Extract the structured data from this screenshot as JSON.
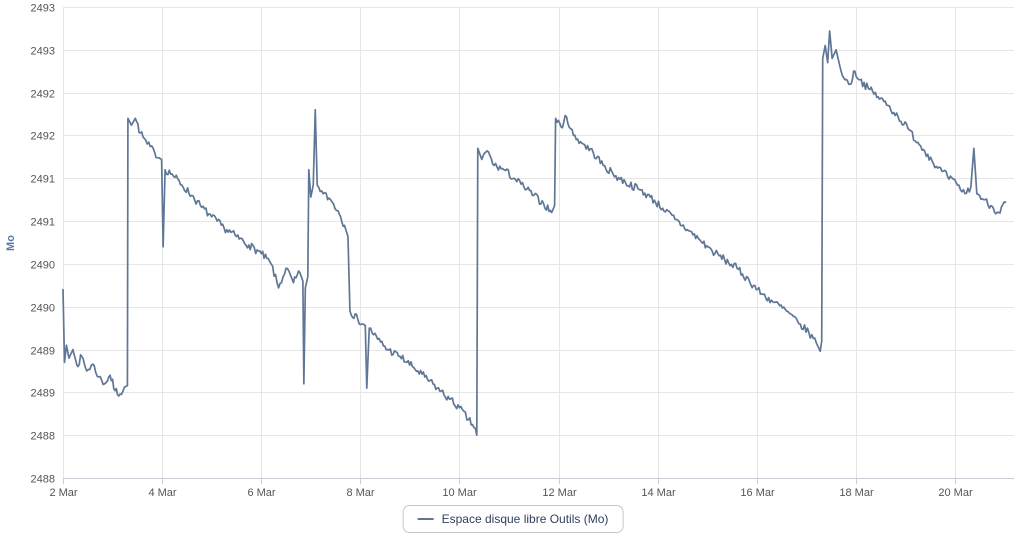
{
  "page": {
    "background": "#ffffff"
  },
  "styles": {
    "grid_color": "#e6e6e6",
    "axis_line_color": "#c9ced6",
    "tick_label_color": "#555555",
    "y_title_color": "#5878a8",
    "legend_text_color": "#2f3f5c",
    "legend_border_color": "#c9c9c9"
  },
  "legend": {
    "items": [
      {
        "label": "Espace disque libre Outils (Mo)",
        "swatch_color": "#5f7695"
      }
    ]
  },
  "chart_data": {
    "type": "line",
    "title": "",
    "xlabel": "",
    "ylabel": "Mo",
    "grid": true,
    "legend_position": "bottom-center",
    "x_range_days": [
      2,
      21.19
    ],
    "y_range": [
      2488,
      2493.5
    ],
    "x_ticks": [
      {
        "d": 2,
        "label": "2 Mar"
      },
      {
        "d": 4,
        "label": "4 Mar"
      },
      {
        "d": 6,
        "label": "6 Mar"
      },
      {
        "d": 8,
        "label": "8 Mar"
      },
      {
        "d": 10,
        "label": "10 Mar"
      },
      {
        "d": 12,
        "label": "12 Mar"
      },
      {
        "d": 14,
        "label": "14 Mar"
      },
      {
        "d": 16,
        "label": "16 Mar"
      },
      {
        "d": 18,
        "label": "18 Mar"
      },
      {
        "d": 20,
        "label": "20 Mar"
      }
    ],
    "y_ticks": [
      {
        "v": 2493.5,
        "label": "2493"
      },
      {
        "v": 2493.0,
        "label": "2493"
      },
      {
        "v": 2492.5,
        "label": "2492"
      },
      {
        "v": 2492.0,
        "label": "2492"
      },
      {
        "v": 2491.5,
        "label": "2491"
      },
      {
        "v": 2491.0,
        "label": "2491"
      },
      {
        "v": 2490.5,
        "label": "2490"
      },
      {
        "v": 2490.0,
        "label": "2490"
      },
      {
        "v": 2489.5,
        "label": "2489"
      },
      {
        "v": 2489.0,
        "label": "2489"
      },
      {
        "v": 2488.5,
        "label": "2488"
      },
      {
        "v": 2488.0,
        "label": "2488"
      }
    ],
    "noise_amplitude": 0.045,
    "noise_seed": 7,
    "sample_step_days": 0.028,
    "series": [
      {
        "name": "Espace disque libre Outils (Mo)",
        "color": "#5f7695",
        "unit": "Mo",
        "anchors": [
          [
            2.0,
            2490.2
          ],
          [
            2.03,
            2489.35
          ],
          [
            2.07,
            2489.55
          ],
          [
            2.12,
            2489.4
          ],
          [
            2.2,
            2489.5
          ],
          [
            2.28,
            2489.32
          ],
          [
            2.38,
            2489.42
          ],
          [
            2.48,
            2489.25
          ],
          [
            2.6,
            2489.33
          ],
          [
            2.72,
            2489.18
          ],
          [
            2.84,
            2489.1
          ],
          [
            2.95,
            2489.2
          ],
          [
            3.05,
            2489.02
          ],
          [
            3.15,
            2488.98
          ],
          [
            3.24,
            2489.06
          ],
          [
            3.3,
            2489.08
          ],
          [
            3.31,
            2492.2
          ],
          [
            3.38,
            2492.12
          ],
          [
            3.46,
            2492.2
          ],
          [
            3.56,
            2492.03
          ],
          [
            3.7,
            2491.9
          ],
          [
            3.85,
            2491.8
          ],
          [
            3.99,
            2491.72
          ],
          [
            4.02,
            2490.7
          ],
          [
            4.06,
            2491.6
          ],
          [
            4.2,
            2491.55
          ],
          [
            4.4,
            2491.42
          ],
          [
            4.6,
            2491.3
          ],
          [
            4.8,
            2491.16
          ],
          [
            5.0,
            2491.05
          ],
          [
            5.25,
            2490.92
          ],
          [
            5.5,
            2490.82
          ],
          [
            5.75,
            2490.72
          ],
          [
            6.0,
            2490.62
          ],
          [
            6.2,
            2490.5
          ],
          [
            6.35,
            2490.22
          ],
          [
            6.5,
            2490.45
          ],
          [
            6.65,
            2490.28
          ],
          [
            6.78,
            2490.4
          ],
          [
            6.84,
            2490.3
          ],
          [
            6.86,
            2489.1
          ],
          [
            6.89,
            2490.22
          ],
          [
            6.94,
            2490.35
          ],
          [
            6.96,
            2491.6
          ],
          [
            7.0,
            2491.28
          ],
          [
            7.05,
            2491.42
          ],
          [
            7.09,
            2492.3
          ],
          [
            7.13,
            2491.42
          ],
          [
            7.25,
            2491.32
          ],
          [
            7.4,
            2491.25
          ],
          [
            7.55,
            2491.12
          ],
          [
            7.68,
            2490.95
          ],
          [
            7.75,
            2490.82
          ],
          [
            7.79,
            2489.95
          ],
          [
            7.95,
            2489.85
          ],
          [
            8.1,
            2489.78
          ],
          [
            8.13,
            2489.05
          ],
          [
            8.18,
            2489.75
          ],
          [
            8.35,
            2489.62
          ],
          [
            8.55,
            2489.5
          ],
          [
            8.8,
            2489.42
          ],
          [
            9.05,
            2489.3
          ],
          [
            9.3,
            2489.18
          ],
          [
            9.55,
            2489.05
          ],
          [
            9.8,
            2488.92
          ],
          [
            10.0,
            2488.82
          ],
          [
            10.18,
            2488.68
          ],
          [
            10.32,
            2488.58
          ],
          [
            10.35,
            2488.5
          ],
          [
            10.37,
            2491.85
          ],
          [
            10.45,
            2491.72
          ],
          [
            10.56,
            2491.82
          ],
          [
            10.7,
            2491.65
          ],
          [
            10.9,
            2491.6
          ],
          [
            11.1,
            2491.5
          ],
          [
            11.3,
            2491.4
          ],
          [
            11.5,
            2491.3
          ],
          [
            11.7,
            2491.2
          ],
          [
            11.86,
            2491.1
          ],
          [
            11.92,
            2491.18
          ],
          [
            11.94,
            2492.2
          ],
          [
            12.05,
            2492.1
          ],
          [
            12.16,
            2492.22
          ],
          [
            12.3,
            2492.0
          ],
          [
            12.5,
            2491.9
          ],
          [
            12.7,
            2491.8
          ],
          [
            12.9,
            2491.65
          ],
          [
            13.1,
            2491.55
          ],
          [
            13.35,
            2491.45
          ],
          [
            13.6,
            2491.38
          ],
          [
            13.85,
            2491.28
          ],
          [
            14.1,
            2491.15
          ],
          [
            14.35,
            2491.02
          ],
          [
            14.6,
            2490.9
          ],
          [
            14.85,
            2490.78
          ],
          [
            15.1,
            2490.65
          ],
          [
            15.35,
            2490.55
          ],
          [
            15.6,
            2490.45
          ],
          [
            15.85,
            2490.3
          ],
          [
            16.1,
            2490.15
          ],
          [
            16.35,
            2490.05
          ],
          [
            16.6,
            2489.95
          ],
          [
            16.85,
            2489.8
          ],
          [
            17.05,
            2489.7
          ],
          [
            17.2,
            2489.58
          ],
          [
            17.28,
            2489.48
          ],
          [
            17.31,
            2489.6
          ],
          [
            17.33,
            2492.9
          ],
          [
            17.38,
            2493.05
          ],
          [
            17.43,
            2492.85
          ],
          [
            17.47,
            2493.22
          ],
          [
            17.52,
            2492.9
          ],
          [
            17.6,
            2493.0
          ],
          [
            17.68,
            2492.8
          ],
          [
            17.78,
            2492.65
          ],
          [
            17.88,
            2492.6
          ],
          [
            17.98,
            2492.75
          ],
          [
            18.08,
            2492.65
          ],
          [
            18.25,
            2492.55
          ],
          [
            18.45,
            2492.45
          ],
          [
            18.65,
            2492.35
          ],
          [
            18.85,
            2492.22
          ],
          [
            19.05,
            2492.08
          ],
          [
            19.25,
            2491.92
          ],
          [
            19.45,
            2491.78
          ],
          [
            19.65,
            2491.62
          ],
          [
            19.85,
            2491.52
          ],
          [
            20.05,
            2491.42
          ],
          [
            20.2,
            2491.32
          ],
          [
            20.32,
            2491.4
          ],
          [
            20.38,
            2491.85
          ],
          [
            20.44,
            2491.32
          ],
          [
            20.58,
            2491.25
          ],
          [
            20.72,
            2491.18
          ],
          [
            20.88,
            2491.1
          ],
          [
            21.02,
            2491.22
          ]
        ]
      }
    ]
  }
}
